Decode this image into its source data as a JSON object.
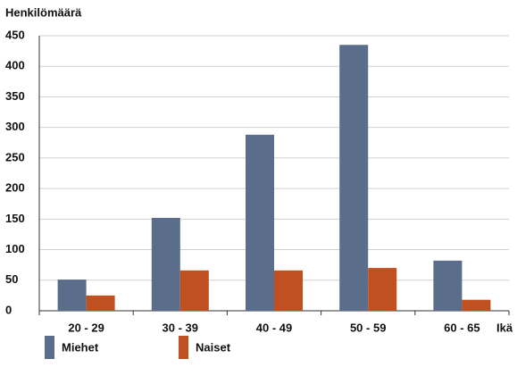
{
  "chart_data": {
    "type": "bar",
    "y_label": "Henkilömäärä",
    "x_label": "Ikä",
    "categories": [
      "20 - 29",
      "30 - 39",
      "40 - 49",
      "50 - 59",
      "60 - 65"
    ],
    "series": [
      {
        "name": "Miehet",
        "color": "#5a6e8c",
        "values": [
          51,
          152,
          288,
          435,
          82
        ]
      },
      {
        "name": "Naiset",
        "color": "#c0501f",
        "values": [
          25,
          66,
          66,
          70,
          18
        ]
      }
    ],
    "ylim": [
      0,
      450
    ],
    "yticks": [
      0,
      50,
      100,
      150,
      200,
      250,
      300,
      350,
      400,
      450
    ],
    "grid": true,
    "legend": "bottom"
  }
}
